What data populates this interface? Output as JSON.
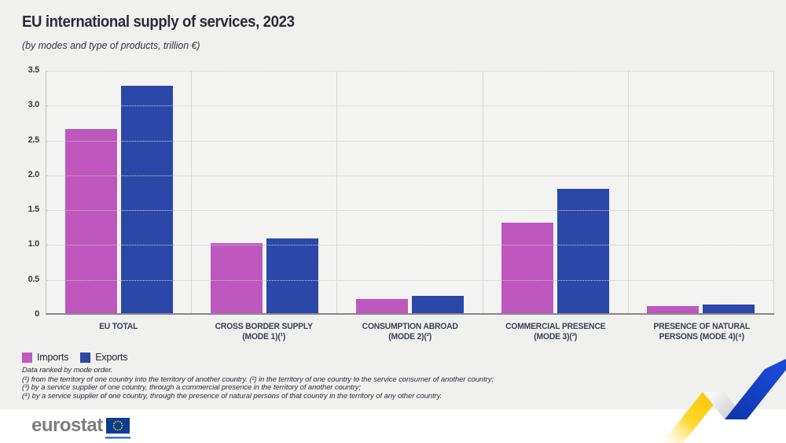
{
  "header": {
    "title": "EU international supply of services, 2023",
    "subtitle": "(by modes and type of products, trillion €)"
  },
  "chart_data": {
    "type": "bar",
    "title": "EU international supply of services, 2023",
    "subtitle": "(by modes and type of products, trillion €)",
    "unit": "trillion €",
    "ylim": [
      0,
      3.5
    ],
    "ytick_labels": [
      "3.5",
      "3.0",
      "2.5",
      "2.0",
      "1.5",
      "1.0",
      "0.5",
      "0"
    ],
    "grid": "horizontal dotted lines every 0.5, vertical solid separators between categories",
    "legend_position": "bottom-left",
    "categories": [
      {
        "lines": [
          "EU TOTAL"
        ]
      },
      {
        "lines": [
          "CROSS BORDER SUPPLY",
          "(MODE 1)(¹)"
        ]
      },
      {
        "lines": [
          "CONSUMPTION ABROAD",
          "(MODE 2)(²)"
        ]
      },
      {
        "lines": [
          "COMMERCIAL PRESENCE",
          "(MODE 3)(³)"
        ]
      },
      {
        "lines": [
          "PRESENCE OF NATURAL",
          "PERSONS (MODE 4)(⁴)"
        ]
      }
    ],
    "series": [
      {
        "name": "Imports",
        "color": "#be58be",
        "values": [
          2.66,
          1.01,
          0.2,
          1.31,
          0.1
        ]
      },
      {
        "name": "Exports",
        "color": "#2b48a8",
        "values": [
          3.28,
          1.08,
          0.25,
          1.79,
          0.13
        ]
      }
    ]
  },
  "footnotes": {
    "line0": "Data ranked by mode order.",
    "line1": "(¹) from the territory of one country into the territory of another country. (²) in the territory of one country to the service consumer of another country;",
    "line2": "(³) by a service supplier of one country, through a commercial presence in the territory of another country;",
    "line3": "(⁴) by a service supplier of one country, through the presence of natural persons of that country in the territory of any other country."
  },
  "footer": {
    "logo_text": "eurostat"
  },
  "colors": {
    "imports": "#be58be",
    "exports": "#2b48a8",
    "page_background": "#f0f0ef",
    "ribbon_yellow": "#ffd31c",
    "ribbon_blue": "#1747d0",
    "eu_flag_blue": "#0b3d91",
    "eu_star_yellow": "#ffcc00"
  }
}
